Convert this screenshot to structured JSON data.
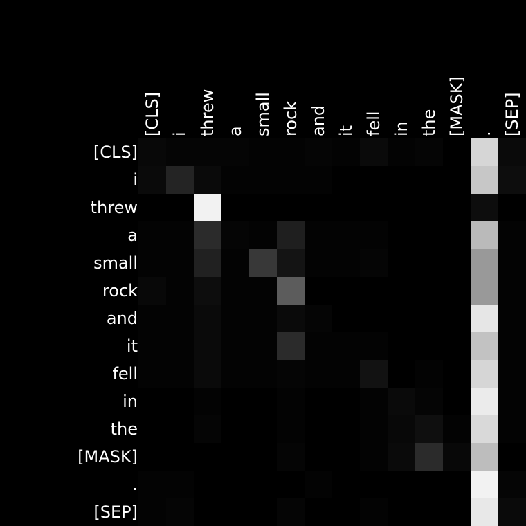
{
  "chart_data": {
    "type": "heatmap",
    "title": "",
    "xlabel": "",
    "ylabel": "",
    "colormap": "grayscale",
    "range": [
      0,
      1
    ],
    "x_labels": [
      "[CLS]",
      "i",
      "threw",
      "a",
      "small",
      "rock",
      "and",
      "it",
      "fell",
      "in",
      "the",
      "[MASK]",
      ".",
      "[SEP]"
    ],
    "y_labels": [
      "[CLS]",
      "i",
      "threw",
      "a",
      "small",
      "rock",
      "and",
      "it",
      "fell",
      "in",
      "the",
      "[MASK]",
      ".",
      "[SEP]"
    ],
    "values": [
      [
        0.03,
        0.02,
        0.02,
        0.02,
        0.01,
        0.01,
        0.02,
        0.01,
        0.04,
        0.01,
        0.02,
        0.0,
        0.84,
        0.04
      ],
      [
        0.04,
        0.14,
        0.04,
        0.01,
        0.01,
        0.01,
        0.01,
        0.0,
        0.0,
        0.0,
        0.0,
        0.0,
        0.78,
        0.05
      ],
      [
        0.0,
        0.0,
        0.95,
        0.0,
        0.0,
        0.0,
        0.0,
        0.0,
        0.0,
        0.0,
        0.0,
        0.0,
        0.05,
        0.0
      ],
      [
        0.01,
        0.01,
        0.17,
        0.02,
        0.01,
        0.12,
        0.01,
        0.01,
        0.01,
        0.0,
        0.0,
        0.0,
        0.73,
        0.01
      ],
      [
        0.01,
        0.01,
        0.13,
        0.01,
        0.22,
        0.08,
        0.01,
        0.01,
        0.02,
        0.0,
        0.0,
        0.0,
        0.6,
        0.01
      ],
      [
        0.03,
        0.01,
        0.05,
        0.01,
        0.01,
        0.36,
        0.0,
        0.0,
        0.0,
        0.0,
        0.0,
        0.0,
        0.6,
        0.01
      ],
      [
        0.01,
        0.01,
        0.04,
        0.01,
        0.01,
        0.04,
        0.02,
        0.0,
        0.0,
        0.0,
        0.0,
        0.0,
        0.9,
        0.01
      ],
      [
        0.01,
        0.01,
        0.04,
        0.01,
        0.01,
        0.17,
        0.01,
        0.01,
        0.01,
        0.0,
        0.0,
        0.0,
        0.76,
        0.01
      ],
      [
        0.01,
        0.01,
        0.04,
        0.01,
        0.01,
        0.02,
        0.01,
        0.01,
        0.07,
        0.0,
        0.01,
        0.0,
        0.84,
        0.01
      ],
      [
        0.0,
        0.0,
        0.01,
        0.0,
        0.0,
        0.01,
        0.0,
        0.0,
        0.01,
        0.04,
        0.02,
        0.0,
        0.92,
        0.01
      ],
      [
        0.0,
        0.0,
        0.02,
        0.0,
        0.0,
        0.01,
        0.0,
        0.0,
        0.01,
        0.03,
        0.06,
        0.01,
        0.85,
        0.01
      ],
      [
        0.0,
        0.0,
        0.0,
        0.0,
        0.0,
        0.02,
        0.0,
        0.0,
        0.01,
        0.04,
        0.17,
        0.03,
        0.74,
        0.0
      ],
      [
        0.01,
        0.01,
        0.0,
        0.0,
        0.0,
        0.0,
        0.01,
        0.0,
        0.0,
        0.0,
        0.0,
        0.0,
        0.95,
        0.02
      ],
      [
        0.01,
        0.02,
        0.0,
        0.0,
        0.0,
        0.02,
        0.0,
        0.0,
        0.01,
        0.0,
        0.0,
        0.0,
        0.91,
        0.04
      ]
    ]
  }
}
